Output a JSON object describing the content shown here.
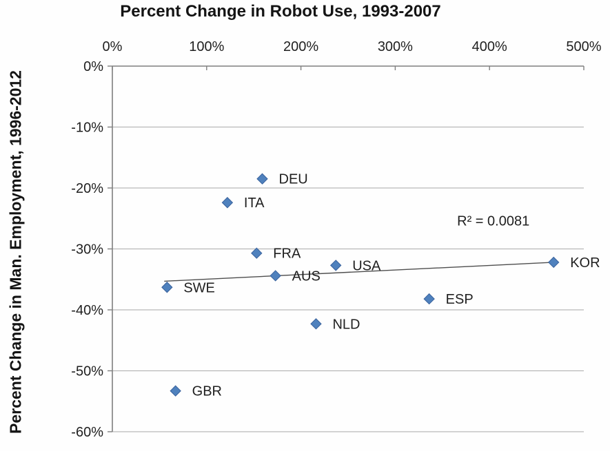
{
  "chart_data": {
    "type": "scatter",
    "title": "Percent Change in Robot Use, 1993-2007",
    "xlabel": "Percent Change in Robot Use, 1993-2007",
    "ylabel": "Percent Change in Man. Employment, 1996-2012",
    "xlim": [
      0,
      500
    ],
    "ylim": [
      -60,
      0
    ],
    "x_axis_position": "top",
    "x_tick_labels": [
      "0%",
      "100%",
      "200%",
      "300%",
      "400%",
      "500%"
    ],
    "y_tick_labels": [
      "0%",
      "-10%",
      "-20%",
      "-30%",
      "-40%",
      "-50%",
      "-60%"
    ],
    "grid": "horizontal-only",
    "legend": "none",
    "points": [
      {
        "label": "SWE",
        "x": 58,
        "y": -36.3
      },
      {
        "label": "GBR",
        "x": 67,
        "y": -53.3
      },
      {
        "label": "ITA",
        "x": 122,
        "y": -22.4
      },
      {
        "label": "FRA",
        "x": 153,
        "y": -30.7
      },
      {
        "label": "DEU",
        "x": 159,
        "y": -18.5
      },
      {
        "label": "AUS",
        "x": 173,
        "y": -34.4
      },
      {
        "label": "NLD",
        "x": 216,
        "y": -42.3
      },
      {
        "label": "USA",
        "x": 237,
        "y": -32.7
      },
      {
        "label": "ESP",
        "x": 336,
        "y": -38.2
      },
      {
        "label": "KOR",
        "x": 468,
        "y": -32.2
      }
    ],
    "trendline": {
      "x1": 55,
      "y1": -35.3,
      "x2": 468,
      "y2": -32.2
    },
    "annotation": {
      "text": "R² = 0.0081",
      "x": 404,
      "y": -25.5
    },
    "colors": {
      "marker_fill": "#4f81bd",
      "marker_border": "#38619c",
      "gridline": "#b8b8b8",
      "axis": "#7f7f7f",
      "trendline": "#4d4d4d",
      "text": "#1f1f1f",
      "background": "#fefefe"
    }
  }
}
